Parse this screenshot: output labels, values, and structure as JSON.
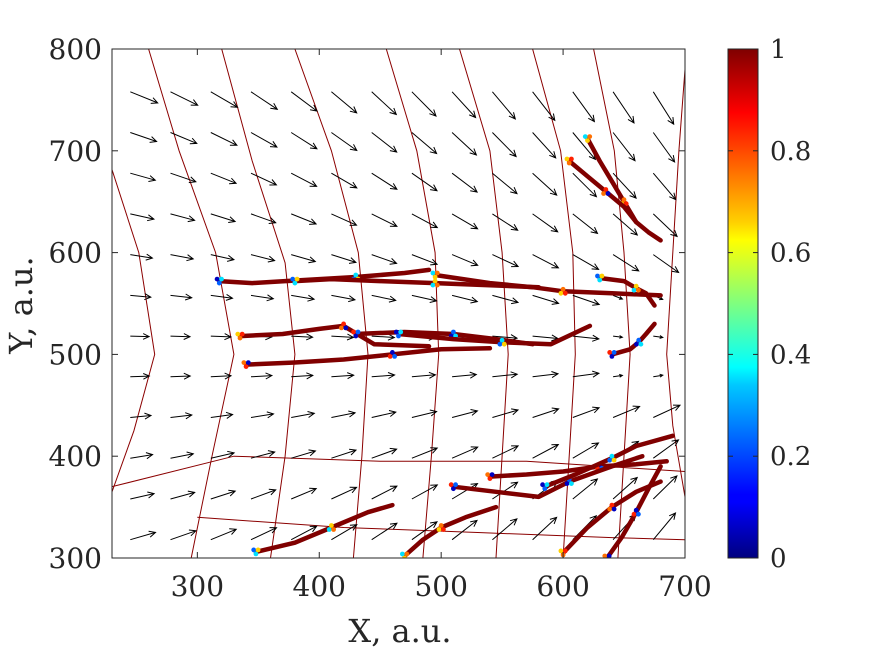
{
  "chart_data": {
    "type": "quiver",
    "title": "",
    "xlabel": "X, a.u.",
    "ylabel": "Y, a.u.",
    "xlim": [
      230,
      700
    ],
    "ylim": [
      300,
      800
    ],
    "xticks": [
      300,
      400,
      500,
      600,
      700
    ],
    "yticks": [
      300,
      400,
      500,
      600,
      700,
      800
    ],
    "grid": false,
    "colorbar": {
      "colormap": "jet",
      "range": [
        0,
        1
      ],
      "ticks": [
        "0",
        "0.2",
        "0.4",
        "0.6",
        "0.8",
        "1"
      ]
    },
    "colors": {
      "contour": "#8b0000",
      "arrow": "#000000",
      "track": "#800000"
    },
    "quiver": {
      "x_start": 245,
      "x_step": 33,
      "y_start": 318,
      "y_step": 40,
      "nx": 14,
      "ny": 12,
      "center_x": 720,
      "center_y": 500
    },
    "contours": [
      [
        [
          230,
          365
        ],
        [
          248,
          425
        ],
        [
          265,
          500
        ],
        [
          252,
          600
        ],
        [
          225,
          700
        ],
        [
          215,
          800
        ]
      ],
      [
        [
          295,
          300
        ],
        [
          312,
          400
        ],
        [
          330,
          500
        ],
        [
          315,
          600
        ],
        [
          285,
          700
        ],
        [
          260,
          800
        ]
      ],
      [
        [
          360,
          300
        ],
        [
          372,
          400
        ],
        [
          380,
          500
        ],
        [
          372,
          590
        ],
        [
          345,
          690
        ],
        [
          320,
          800
        ]
      ],
      [
        [
          428,
          300
        ],
        [
          435,
          400
        ],
        [
          440,
          500
        ],
        [
          432,
          600
        ],
        [
          410,
          700
        ],
        [
          380,
          800
        ]
      ],
      [
        [
          485,
          300
        ],
        [
          492,
          400
        ],
        [
          498,
          500
        ],
        [
          495,
          600
        ],
        [
          480,
          700
        ],
        [
          455,
          800
        ]
      ],
      [
        [
          545,
          300
        ],
        [
          550,
          400
        ],
        [
          555,
          500
        ],
        [
          550,
          600
        ],
        [
          540,
          700
        ],
        [
          515,
          800
        ]
      ],
      [
        [
          600,
          300
        ],
        [
          605,
          400
        ],
        [
          610,
          500
        ],
        [
          608,
          600
        ],
        [
          598,
          700
        ],
        [
          575,
          800
        ]
      ],
      [
        [
          645,
          300
        ],
        [
          650,
          400
        ],
        [
          655,
          500
        ],
        [
          650,
          600
        ],
        [
          642,
          700
        ],
        [
          625,
          800
        ]
      ],
      [
        [
          700,
          360
        ],
        [
          690,
          430
        ],
        [
          685,
          500
        ],
        [
          690,
          600
        ],
        [
          695,
          700
        ],
        [
          700,
          780
        ]
      ],
      [
        [
          230,
          370
        ],
        [
          330,
          400
        ],
        [
          450,
          395
        ],
        [
          570,
          395
        ],
        [
          700,
          385
        ]
      ],
      [
        [
          300,
          340
        ],
        [
          420,
          330
        ],
        [
          530,
          325
        ],
        [
          640,
          320
        ],
        [
          700,
          318
        ]
      ]
    ],
    "tracks": [
      [
        [
          318,
          572
        ],
        [
          345,
          570
        ],
        [
          372,
          572
        ],
        [
          400,
          574
        ],
        [
          430,
          576
        ],
        [
          450,
          578
        ],
        [
          470,
          580
        ],
        [
          490,
          583
        ]
      ],
      [
        [
          380,
          572
        ],
        [
          410,
          574
        ],
        [
          450,
          572
        ],
        [
          495,
          570
        ],
        [
          540,
          568
        ],
        [
          580,
          566
        ]
      ],
      [
        [
          495,
          578
        ],
        [
          540,
          570
        ],
        [
          575,
          566
        ],
        [
          600,
          562
        ],
        [
          640,
          560
        ],
        [
          680,
          558
        ]
      ],
      [
        [
          335,
          518
        ],
        [
          370,
          520
        ],
        [
          400,
          525
        ],
        [
          420,
          528
        ],
        [
          445,
          510
        ],
        [
          490,
          508
        ]
      ],
      [
        [
          340,
          490
        ],
        [
          380,
          492
        ],
        [
          420,
          495
        ],
        [
          460,
          500
        ],
        [
          500,
          505
        ],
        [
          540,
          506
        ]
      ],
      [
        [
          430,
          520
        ],
        [
          470,
          522
        ],
        [
          510,
          520
        ],
        [
          545,
          515
        ],
        [
          575,
          510
        ]
      ],
      [
        [
          465,
          520
        ],
        [
          510,
          515
        ],
        [
          550,
          512
        ],
        [
          590,
          510
        ],
        [
          622,
          528
        ]
      ],
      [
        [
          630,
          575
        ],
        [
          650,
          572
        ],
        [
          660,
          565
        ],
        [
          668,
          560
        ],
        [
          675,
          548
        ]
      ],
      [
        [
          620,
          712
        ],
        [
          630,
          690
        ],
        [
          640,
          670
        ],
        [
          650,
          650
        ],
        [
          660,
          630
        ],
        [
          670,
          620
        ],
        [
          680,
          612
        ]
      ],
      [
        [
          605,
          690
        ],
        [
          620,
          675
        ],
        [
          635,
          660
        ],
        [
          650,
          645
        ],
        [
          660,
          630
        ]
      ],
      [
        [
          540,
          380
        ],
        [
          570,
          382
        ],
        [
          600,
          385
        ],
        [
          630,
          390
        ],
        [
          660,
          392
        ],
        [
          685,
          395
        ]
      ],
      [
        [
          510,
          370
        ],
        [
          545,
          365
        ],
        [
          580,
          360
        ],
        [
          605,
          375
        ],
        [
          640,
          390
        ],
        [
          665,
          400
        ]
      ],
      [
        [
          585,
          370
        ],
        [
          610,
          382
        ],
        [
          640,
          398
        ],
        [
          660,
          410
        ],
        [
          690,
          420
        ]
      ],
      [
        [
          348,
          306
        ],
        [
          380,
          315
        ],
        [
          410,
          330
        ],
        [
          440,
          345
        ],
        [
          460,
          352
        ]
      ],
      [
        [
          470,
          302
        ],
        [
          485,
          318
        ],
        [
          500,
          330
        ],
        [
          520,
          340
        ],
        [
          545,
          350
        ]
      ],
      [
        [
          600,
          305
        ],
        [
          620,
          330
        ],
        [
          640,
          350
        ],
        [
          660,
          365
        ],
        [
          680,
          375
        ]
      ],
      [
        [
          636,
          300
        ],
        [
          648,
          320
        ],
        [
          660,
          345
        ],
        [
          670,
          368
        ],
        [
          680,
          390
        ]
      ],
      [
        [
          640,
          500
        ],
        [
          655,
          505
        ],
        [
          662,
          512
        ],
        [
          668,
          520
        ],
        [
          675,
          530
        ]
      ]
    ]
  }
}
